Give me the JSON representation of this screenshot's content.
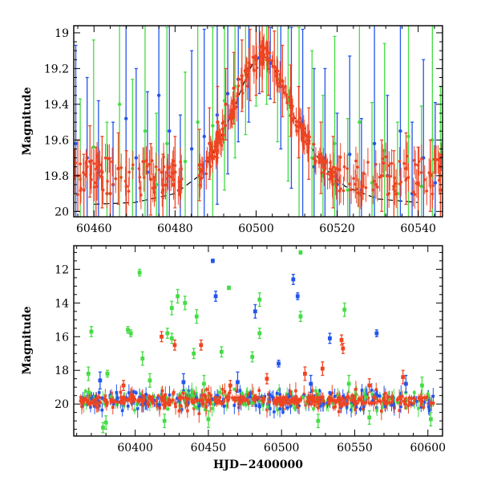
{
  "chart_data": [
    {
      "type": "scatter",
      "title": "",
      "xlabel": "",
      "ylabel": "Magnitude",
      "xlim": [
        60455,
        60546
      ],
      "ylim": [
        20.03,
        18.96
      ],
      "y_inverted": true,
      "grid": false,
      "x_ticks": [
        60460,
        60480,
        60500,
        60520,
        60540
      ],
      "y_ticks": [
        19.0,
        19.2,
        19.4,
        19.6,
        19.8,
        20.0
      ],
      "x_tick_labels": [
        "60460",
        "60480",
        "60500",
        "60520",
        "60540"
      ],
      "y_tick_labels": [
        "19",
        "19.2",
        "19.4",
        "19.6",
        "19.8",
        "20"
      ],
      "model_curve": {
        "style": "dashed",
        "color": "#000000",
        "peak_x": 60501.5,
        "peak_mag": 19.12,
        "baseline_mag": 19.95,
        "x": [
          60460,
          60470,
          60480,
          60486,
          60490,
          60494,
          60497,
          60499,
          60500.5,
          60501.5,
          60502.5,
          60504,
          60506,
          60509,
          60513,
          60517,
          60522,
          60530,
          60540
        ],
        "y": [
          19.96,
          19.95,
          19.9,
          19.8,
          19.65,
          19.45,
          19.28,
          19.18,
          19.14,
          19.12,
          19.14,
          19.18,
          19.28,
          19.45,
          19.62,
          19.76,
          19.86,
          19.93,
          19.95
        ]
      },
      "series": [
        {
          "color": "#2255ee",
          "points": [
            {
              "x": 60455.5,
              "y": 19.62,
              "err": 0.55
            },
            {
              "x": 60458.3,
              "y": 19.7,
              "err": 0.45
            },
            {
              "x": 60461.1,
              "y": 19.78,
              "err": 0.4
            },
            {
              "x": 60464.7,
              "y": 19.85,
              "err": 0.35
            },
            {
              "x": 60467.9,
              "y": 19.48,
              "err": 0.9
            },
            {
              "x": 60470.4,
              "y": 19.7,
              "err": 0.5
            },
            {
              "x": 60473.2,
              "y": 19.78,
              "err": 0.45
            },
            {
              "x": 60476.0,
              "y": 19.35,
              "err": 0.8
            },
            {
              "x": 60478.6,
              "y": 19.55,
              "err": 0.6
            },
            {
              "x": 60481.3,
              "y": 19.86,
              "err": 0.4
            },
            {
              "x": 60484.1,
              "y": 19.65,
              "err": 0.55
            },
            {
              "x": 60487.2,
              "y": 19.58,
              "err": 0.6
            },
            {
              "x": 60490.4,
              "y": 19.46,
              "err": 0.5
            },
            {
              "x": 60493.0,
              "y": 19.34,
              "err": 0.45
            },
            {
              "x": 60495.6,
              "y": 19.26,
              "err": 0.35
            },
            {
              "x": 60498.2,
              "y": 19.2,
              "err": 0.3
            },
            {
              "x": 60500.8,
              "y": 19.14,
              "err": 0.2
            },
            {
              "x": 60503.5,
              "y": 19.17,
              "err": 0.2
            },
            {
              "x": 60506.1,
              "y": 19.3,
              "err": 0.35
            },
            {
              "x": 60508.7,
              "y": 19.42,
              "err": 0.45
            },
            {
              "x": 60511.5,
              "y": 19.58,
              "err": 0.6
            },
            {
              "x": 60514.3,
              "y": 19.75,
              "err": 0.55
            },
            {
              "x": 60517.0,
              "y": 19.7,
              "err": 0.5
            },
            {
              "x": 60520.0,
              "y": 19.85,
              "err": 0.4
            },
            {
              "x": 60523.1,
              "y": 19.68,
              "err": 0.55
            },
            {
              "x": 60526.0,
              "y": 19.88,
              "err": 0.4
            },
            {
              "x": 60529.2,
              "y": 19.62,
              "err": 0.7
            },
            {
              "x": 60532.4,
              "y": 19.8,
              "err": 0.45
            },
            {
              "x": 60535.6,
              "y": 19.55,
              "err": 0.75
            },
            {
              "x": 60538.5,
              "y": 19.9,
              "err": 0.4
            },
            {
              "x": 60541.3,
              "y": 19.7,
              "err": 0.55
            },
            {
              "x": 60544.2,
              "y": 19.84,
              "err": 0.45
            }
          ]
        },
        {
          "color": "#44dd44",
          "points": [
            {
              "x": 60456.6,
              "y": 19.82,
              "err": 0.45
            },
            {
              "x": 60459.9,
              "y": 19.64,
              "err": 0.6
            },
            {
              "x": 60463.2,
              "y": 19.9,
              "err": 0.4
            },
            {
              "x": 60466.3,
              "y": 19.4,
              "err": 0.9
            },
            {
              "x": 60469.5,
              "y": 19.76,
              "err": 0.5
            },
            {
              "x": 60472.6,
              "y": 19.55,
              "err": 0.7
            },
            {
              "x": 60475.4,
              "y": 19.85,
              "err": 0.4
            },
            {
              "x": 60478.0,
              "y": 19.62,
              "err": 0.65
            },
            {
              "x": 60482.5,
              "y": 19.72,
              "err": 0.5
            },
            {
              "x": 60485.6,
              "y": 19.5,
              "err": 0.7
            },
            {
              "x": 60489.3,
              "y": 19.52,
              "err": 0.55
            },
            {
              "x": 60492.2,
              "y": 19.38,
              "err": 0.5
            },
            {
              "x": 60494.8,
              "y": 19.3,
              "err": 0.4
            },
            {
              "x": 60497.4,
              "y": 19.22,
              "err": 0.35
            },
            {
              "x": 60500.0,
              "y": 19.16,
              "err": 0.25
            },
            {
              "x": 60502.6,
              "y": 19.15,
              "err": 0.25
            },
            {
              "x": 60505.3,
              "y": 19.26,
              "err": 0.35
            },
            {
              "x": 60507.9,
              "y": 19.38,
              "err": 0.45
            },
            {
              "x": 60510.6,
              "y": 19.52,
              "err": 0.55
            },
            {
              "x": 60513.8,
              "y": 19.7,
              "err": 0.6
            },
            {
              "x": 60516.5,
              "y": 19.8,
              "err": 0.45
            },
            {
              "x": 60519.4,
              "y": 19.62,
              "err": 0.6
            },
            {
              "x": 60522.6,
              "y": 19.88,
              "err": 0.4
            },
            {
              "x": 60525.5,
              "y": 19.5,
              "err": 0.8
            },
            {
              "x": 60528.6,
              "y": 19.84,
              "err": 0.45
            },
            {
              "x": 60531.7,
              "y": 19.66,
              "err": 0.6
            },
            {
              "x": 60534.9,
              "y": 19.9,
              "err": 0.4
            },
            {
              "x": 60537.6,
              "y": 19.58,
              "err": 0.7
            },
            {
              "x": 60540.8,
              "y": 19.86,
              "err": 0.45
            },
            {
              "x": 60543.5,
              "y": 19.6,
              "err": 0.65
            },
            {
              "x": 60545.5,
              "y": 19.8,
              "err": 0.5
            }
          ]
        },
        {
          "color": "#ee4422",
          "points": [
            {
              "x": 60456.0,
              "y": 19.8,
              "err": 0.2
            },
            {
              "x": 60457.5,
              "y": 19.88,
              "err": 0.2
            },
            {
              "x": 60459.0,
              "y": 19.72,
              "err": 0.2
            },
            {
              "x": 60460.5,
              "y": 19.84,
              "err": 0.2
            },
            {
              "x": 60462.0,
              "y": 19.78,
              "err": 0.2
            },
            {
              "x": 60464.0,
              "y": 19.9,
              "err": 0.2
            },
            {
              "x": 60466.0,
              "y": 19.76,
              "err": 0.2
            },
            {
              "x": 60468.0,
              "y": 19.86,
              "err": 0.2
            },
            {
              "x": 60474.0,
              "y": 19.82,
              "err": 0.2
            },
            {
              "x": 60477.0,
              "y": 19.88,
              "err": 0.2
            },
            {
              "x": 60480.0,
              "y": 19.78,
              "err": 0.2
            },
            {
              "x": 60486.0,
              "y": 19.74,
              "err": 0.2
            },
            {
              "x": 60488.5,
              "y": 19.62,
              "err": 0.2
            },
            {
              "x": 60490.5,
              "y": 19.5,
              "err": 0.2
            },
            {
              "x": 60492.5,
              "y": 19.4,
              "err": 0.2
            },
            {
              "x": 60494.5,
              "y": 19.31,
              "err": 0.2
            },
            {
              "x": 60496.5,
              "y": 19.24,
              "err": 0.2
            },
            {
              "x": 60498.5,
              "y": 19.18,
              "err": 0.2
            },
            {
              "x": 60500.0,
              "y": 19.15,
              "err": 0.2
            },
            {
              "x": 60501.5,
              "y": 19.13,
              "err": 0.2
            },
            {
              "x": 60503.0,
              "y": 19.15,
              "err": 0.2
            },
            {
              "x": 60504.5,
              "y": 19.19,
              "err": 0.2
            },
            {
              "x": 60506.5,
              "y": 19.27,
              "err": 0.2
            },
            {
              "x": 60508.5,
              "y": 19.38,
              "err": 0.2
            },
            {
              "x": 60510.5,
              "y": 19.5,
              "err": 0.2
            },
            {
              "x": 60513.0,
              "y": 19.62,
              "err": 0.2
            },
            {
              "x": 60516.0,
              "y": 19.7,
              "err": 0.2
            },
            {
              "x": 60519.0,
              "y": 19.78,
              "err": 0.2
            },
            {
              "x": 60531.0,
              "y": 19.8,
              "err": 0.2
            },
            {
              "x": 60534.0,
              "y": 19.86,
              "err": 0.2
            },
            {
              "x": 60537.0,
              "y": 19.76,
              "err": 0.2
            },
            {
              "x": 60540.0,
              "y": 19.84,
              "err": 0.2
            },
            {
              "x": 60543.0,
              "y": 19.8,
              "err": 0.2
            },
            {
              "x": 60545.5,
              "y": 19.88,
              "err": 0.2
            }
          ]
        }
      ]
    },
    {
      "type": "scatter",
      "title": "",
      "xlabel": "HJD−2400000",
      "ylabel": "Magnitude",
      "xlim": [
        60358,
        60610
      ],
      "ylim": [
        21.9,
        10.6
      ],
      "y_inverted": true,
      "grid": false,
      "x_ticks": [
        60400,
        60450,
        60500,
        60550,
        60600
      ],
      "y_ticks": [
        12,
        14,
        16,
        18,
        20
      ],
      "x_tick_labels": [
        "60400",
        "60450",
        "60500",
        "60550",
        "60600"
      ],
      "y_tick_labels": [
        "12",
        "14",
        "16",
        "18",
        "20"
      ],
      "baseline_band": {
        "x_start": 60362,
        "x_end": 60604,
        "mag_center": 19.8,
        "mag_spread": 0.45
      },
      "series": [
        {
          "color": "#2255ee",
          "points": [
            {
              "x": 60453,
              "y": 11.5,
              "err": 0.1
            },
            {
              "x": 60455,
              "y": 13.6,
              "err": 0.3
            },
            {
              "x": 60482,
              "y": 14.5,
              "err": 0.4
            },
            {
              "x": 60508,
              "y": 12.6,
              "err": 0.3
            },
            {
              "x": 60511,
              "y": 13.6,
              "err": 0.2
            },
            {
              "x": 60533,
              "y": 16.1,
              "err": 0.3
            },
            {
              "x": 60565,
              "y": 15.8,
              "err": 0.2
            },
            {
              "x": 60498,
              "y": 17.6,
              "err": 0.2
            },
            {
              "x": 60376,
              "y": 18.6,
              "err": 0.5
            },
            {
              "x": 60433,
              "y": 18.7,
              "err": 0.5
            },
            {
              "x": 60470,
              "y": 18.7,
              "err": 0.6
            },
            {
              "x": 60520,
              "y": 18.8,
              "err": 0.5
            },
            {
              "x": 60585,
              "y": 18.8,
              "err": 0.5
            }
          ]
        },
        {
          "color": "#44dd44",
          "points": [
            {
              "x": 60513,
              "y": 11.0,
              "err": 0.1
            },
            {
              "x": 60403,
              "y": 12.2,
              "err": 0.2
            },
            {
              "x": 60464,
              "y": 13.1,
              "err": 0.1
            },
            {
              "x": 60429,
              "y": 13.6,
              "err": 0.4
            },
            {
              "x": 60434,
              "y": 14.0,
              "err": 0.4
            },
            {
              "x": 60425,
              "y": 14.3,
              "err": 0.4
            },
            {
              "x": 60442,
              "y": 14.8,
              "err": 0.4
            },
            {
              "x": 60485,
              "y": 13.8,
              "err": 0.4
            },
            {
              "x": 60513,
              "y": 14.8,
              "err": 0.3
            },
            {
              "x": 60543,
              "y": 14.4,
              "err": 0.4
            },
            {
              "x": 60370,
              "y": 15.7,
              "err": 0.3
            },
            {
              "x": 60395,
              "y": 15.6,
              "err": 0.2
            },
            {
              "x": 60397,
              "y": 15.8,
              "err": 0.2
            },
            {
              "x": 60422,
              "y": 15.8,
              "err": 0.3
            },
            {
              "x": 60425,
              "y": 16.1,
              "err": 0.3
            },
            {
              "x": 60485,
              "y": 15.8,
              "err": 0.3
            },
            {
              "x": 60440,
              "y": 17.0,
              "err": 0.3
            },
            {
              "x": 60459,
              "y": 16.9,
              "err": 0.3
            },
            {
              "x": 60480,
              "y": 17.2,
              "err": 0.3
            },
            {
              "x": 60405,
              "y": 17.3,
              "err": 0.4
            },
            {
              "x": 60368,
              "y": 18.2,
              "err": 0.4
            },
            {
              "x": 60381,
              "y": 18.2,
              "err": 0.2
            },
            {
              "x": 60410,
              "y": 18.6,
              "err": 0.4
            },
            {
              "x": 60447,
              "y": 18.8,
              "err": 0.5
            },
            {
              "x": 60546,
              "y": 18.8,
              "err": 0.5
            },
            {
              "x": 60596,
              "y": 18.9,
              "err": 0.5
            },
            {
              "x": 60380,
              "y": 21.1,
              "err": 0.4
            },
            {
              "x": 60420,
              "y": 21.0,
              "err": 0.4
            },
            {
              "x": 60450,
              "y": 20.9,
              "err": 0.5
            },
            {
              "x": 60525,
              "y": 21.0,
              "err": 0.4
            },
            {
              "x": 60560,
              "y": 20.8,
              "err": 0.4
            },
            {
              "x": 60602,
              "y": 20.9,
              "err": 0.4
            },
            {
              "x": 60378,
              "y": 21.4,
              "err": 0.3
            }
          ]
        },
        {
          "color": "#ee4422",
          "points": [
            {
              "x": 60418,
              "y": 16.0,
              "err": 0.3
            },
            {
              "x": 60427,
              "y": 16.5,
              "err": 0.3
            },
            {
              "x": 60445,
              "y": 16.5,
              "err": 0.3
            },
            {
              "x": 60541,
              "y": 16.2,
              "err": 0.3
            },
            {
              "x": 60542,
              "y": 16.7,
              "err": 0.3
            },
            {
              "x": 60528,
              "y": 17.9,
              "err": 0.4
            },
            {
              "x": 60516,
              "y": 18.2,
              "err": 0.4
            },
            {
              "x": 60583,
              "y": 18.4,
              "err": 0.4
            },
            {
              "x": 60490,
              "y": 18.5,
              "err": 0.3
            },
            {
              "x": 60392,
              "y": 18.9,
              "err": 0.3
            },
            {
              "x": 60465,
              "y": 18.9,
              "err": 0.3
            },
            {
              "x": 60560,
              "y": 18.9,
              "err": 0.4
            }
          ]
        }
      ]
    }
  ]
}
